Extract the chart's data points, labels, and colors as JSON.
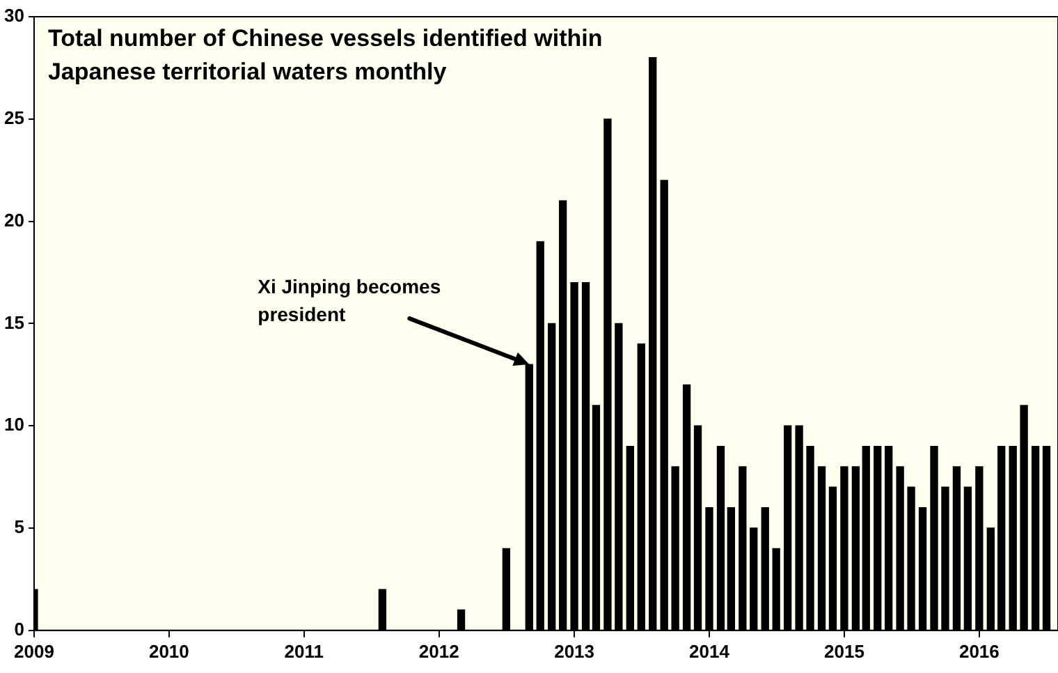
{
  "chart_data": {
    "type": "bar",
    "title": "Total number of Chinese vessels identified within Japanese territorial waters monthly",
    "x": [
      "2009-01",
      "2011-08",
      "2012-03",
      "2012-07",
      "2012-09",
      "2012-10",
      "2012-11",
      "2012-12",
      "2013-01",
      "2013-02",
      "2013-03",
      "2013-04",
      "2013-05",
      "2013-06",
      "2013-07",
      "2013-08",
      "2013-09",
      "2013-10",
      "2013-11",
      "2013-12",
      "2014-01",
      "2014-02",
      "2014-03",
      "2014-04",
      "2014-05",
      "2014-06",
      "2014-07",
      "2014-08",
      "2014-09",
      "2014-10",
      "2014-11",
      "2014-12",
      "2015-01",
      "2015-02",
      "2015-03",
      "2015-04",
      "2015-05",
      "2015-06",
      "2015-07",
      "2015-08",
      "2015-09",
      "2015-10",
      "2015-11",
      "2015-12",
      "2016-01",
      "2016-02",
      "2016-03",
      "2016-04",
      "2016-05",
      "2016-06",
      "2016-07"
    ],
    "values": [
      2,
      2,
      1,
      4,
      13,
      19,
      15,
      21,
      17,
      17,
      11,
      25,
      15,
      9,
      14,
      28,
      22,
      8,
      12,
      10,
      6,
      9,
      6,
      8,
      5,
      6,
      4,
      10,
      10,
      9,
      8,
      7,
      8,
      8,
      9,
      9,
      9,
      8,
      7,
      6,
      9,
      7,
      8,
      7,
      8,
      5,
      9,
      9,
      11,
      9,
      9
    ],
    "color": "#000000",
    "xlim": [
      "2009-01",
      "2016-08"
    ],
    "xticks": [
      "2009",
      "2010",
      "2011",
      "2012",
      "2013",
      "2014",
      "2015",
      "2016"
    ],
    "ylim": [
      0,
      30
    ],
    "yticks": [
      0,
      5,
      10,
      15,
      20,
      25,
      30
    ],
    "grid": false,
    "legend": false,
    "annotations": [
      {
        "text": "Xi Jinping becomes president",
        "x": "2012-09",
        "y": 13
      }
    ]
  }
}
